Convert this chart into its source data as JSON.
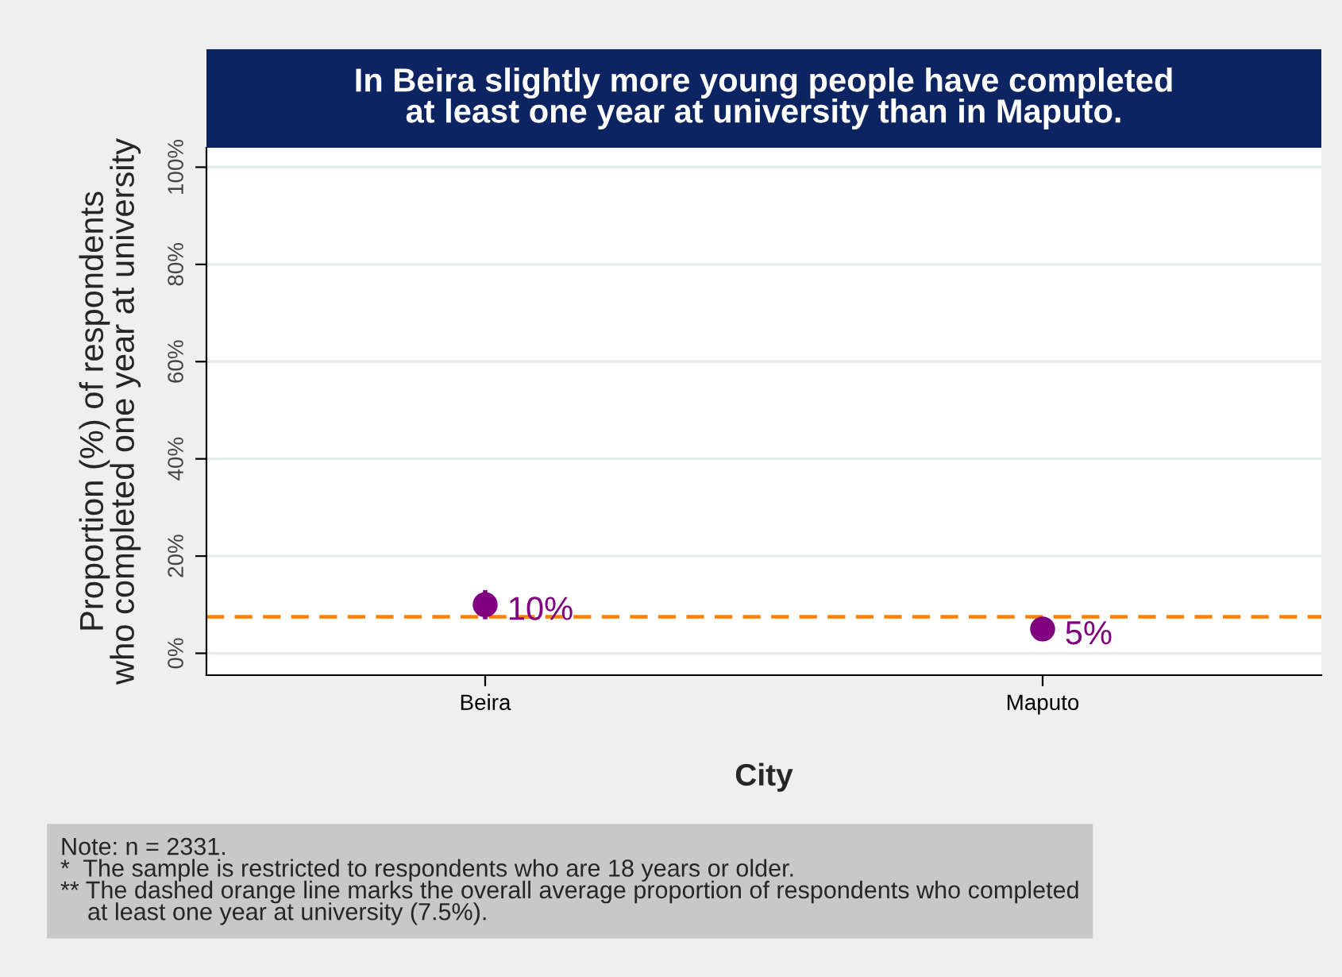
{
  "chart_data": {
    "type": "scatter",
    "title": "In Beira slightly more young people have completed\nat least one year at university than in Maputo.",
    "xlabel": "City",
    "ylabel": "Proportion (%) of respondents\nwho completed one year at university",
    "categories": [
      "Beira",
      "Maputo"
    ],
    "values": [
      10,
      5
    ],
    "errors": [
      3,
      1
    ],
    "color": "#800080",
    "marker": "circle",
    "value_labels": [
      "10%",
      "5%"
    ],
    "ylim": [
      -4.5,
      104
    ],
    "yticks": [
      {
        "value": 0,
        "label": "0%"
      },
      {
        "value": 20,
        "label": "20%"
      },
      {
        "value": 40,
        "label": "40%"
      },
      {
        "value": 60,
        "label": "60%"
      },
      {
        "value": 80,
        "label": "80%"
      },
      {
        "value": 100,
        "label": "100%"
      }
    ],
    "grid": "y",
    "ref_lines": [
      {
        "axis": "y",
        "value": 7.5,
        "color": "#ff8000",
        "line_style": "dashed"
      }
    ],
    "annotations": [
      "Note: n = 2331.\n*  The sample is restricted to respondents who are 18 years or older.\n** The dashed orange line marks the overall average proportion of respondents who completed\n    at least one year at university (7.5%)."
    ]
  }
}
